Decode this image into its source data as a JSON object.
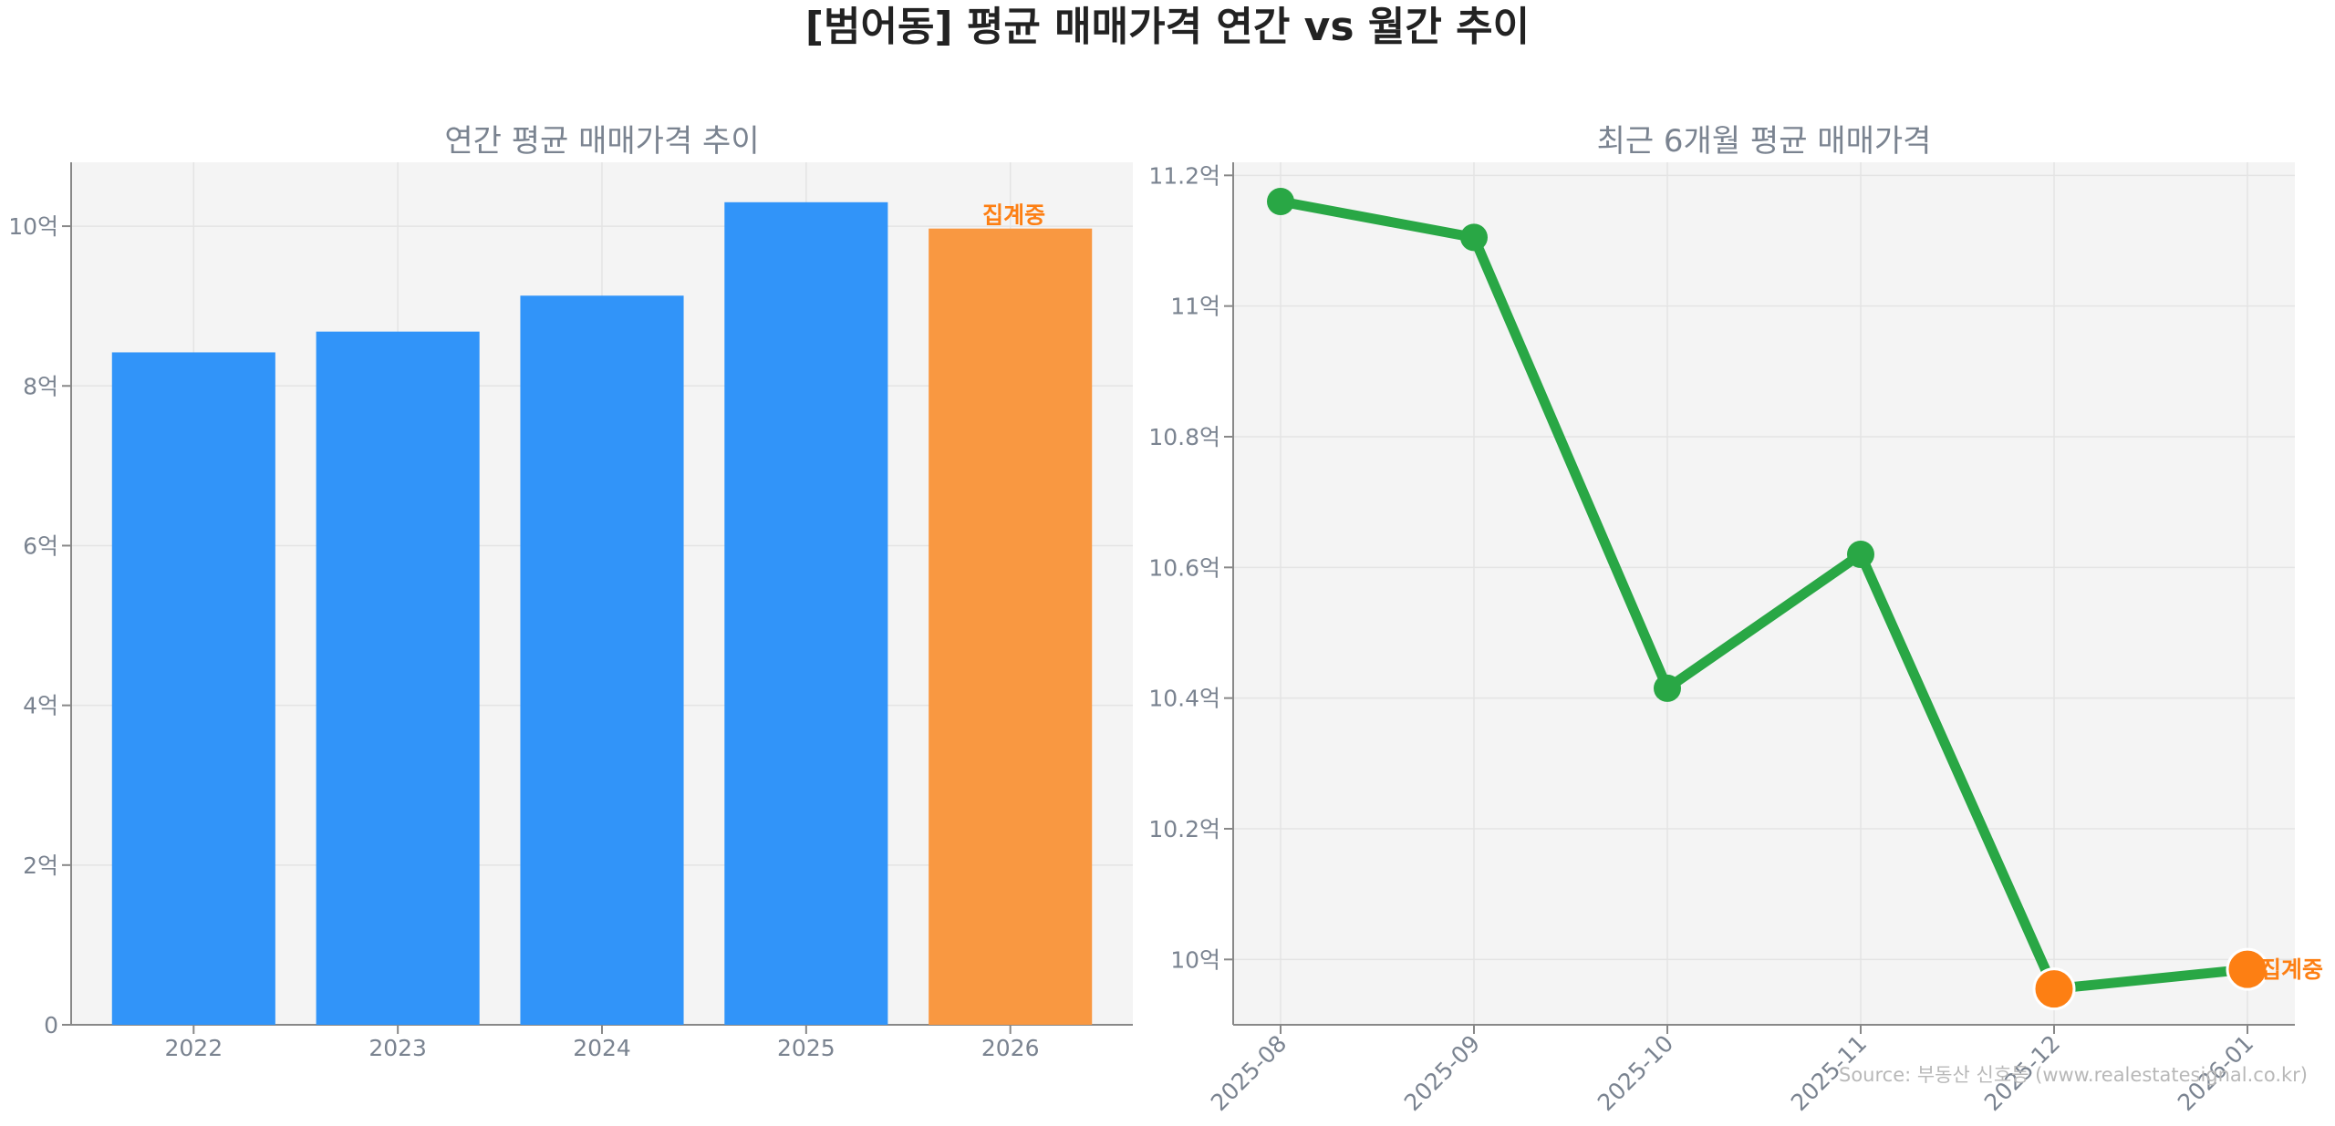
{
  "suptitle": "[범어동] 평균 매매가격 연간 vs 월간 추이",
  "source": "Source: 부동산 신호등 (www.realestatesignal.co.kr)",
  "colors": {
    "bar": "#3194f9",
    "bar_partial": "#f99841",
    "line": "#29a745",
    "marker_partial": "#fd7f13",
    "partial_label": "#fd7f13",
    "axis_text": "#7a8390",
    "panel_bg": "#f4f4f4",
    "grid": "#e4e4e4"
  },
  "chart_data": [
    {
      "type": "bar",
      "title": "연간 평균 매매가격 추이",
      "xlabel": "",
      "ylabel": "",
      "categories": [
        "2022",
        "2023",
        "2024",
        "2025",
        "2026"
      ],
      "values": [
        8.42,
        8.68,
        9.13,
        10.3,
        9.97
      ],
      "ylim": [
        0,
        10.8
      ],
      "yticks": [
        0,
        2,
        4,
        6,
        8,
        10
      ],
      "ytick_labels": [
        "0",
        "2억",
        "4억",
        "6억",
        "8억",
        "10억"
      ],
      "annotation": {
        "category": "2026",
        "text": "집계중"
      },
      "grid": true
    },
    {
      "type": "line",
      "title": "최근 6개월 평균 매매가격",
      "xlabel": "",
      "ylabel": "",
      "x": [
        "2025-08",
        "2025-09",
        "2025-10",
        "2025-11",
        "2025-12",
        "2026-01"
      ],
      "values": [
        11.16,
        11.105,
        10.415,
        10.62,
        9.955,
        9.985
      ],
      "ylim": [
        9.9,
        11.22
      ],
      "yticks": [
        10.0,
        10.2,
        10.4,
        10.6,
        10.8,
        11.0,
        11.2
      ],
      "ytick_labels": [
        "10억",
        "10.2억",
        "10.4억",
        "10.6억",
        "10.8억",
        "11억",
        "11.2억"
      ],
      "highlight_points": [
        "2025-12",
        "2026-01"
      ],
      "annotation": {
        "x": "2026-01",
        "text": "집계중"
      },
      "grid": true
    }
  ]
}
